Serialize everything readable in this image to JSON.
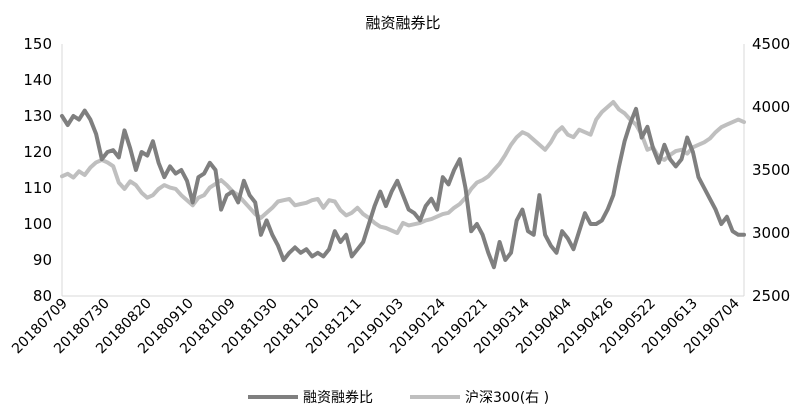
{
  "chart_data": {
    "type": "line",
    "title": "融资融券比",
    "x_tick_labels": [
      "20180709",
      "20180730",
      "20180820",
      "20180910",
      "20181009",
      "20181030",
      "20181120",
      "20181211",
      "20190103",
      "20190124",
      "20190221",
      "20190314",
      "20190404",
      "20190426",
      "20190522",
      "20190613",
      "20190704"
    ],
    "y_left": {
      "ticks": [
        "80",
        "90",
        "100",
        "110",
        "120",
        "130",
        "140",
        "150"
      ],
      "ylim": [
        80,
        150
      ]
    },
    "y_right": {
      "ticks": [
        "2500",
        "3000",
        "3500",
        "4000",
        "4500"
      ],
      "ylim": [
        2500,
        4500
      ]
    },
    "grid": false,
    "legend_position": "bottom",
    "series": [
      {
        "name": "融资融券比",
        "axis": "left",
        "color": "#7f7f7f",
        "values": [
          [
            0,
            130
          ],
          [
            1,
            127.5
          ],
          [
            2,
            130
          ],
          [
            3,
            129
          ],
          [
            4,
            131.5
          ],
          [
            5,
            129
          ],
          [
            6,
            125
          ],
          [
            7,
            118
          ],
          [
            8,
            120
          ],
          [
            9,
            120.5
          ],
          [
            10,
            118.5
          ],
          [
            11,
            126
          ],
          [
            12,
            121
          ],
          [
            13,
            115
          ],
          [
            14,
            120
          ],
          [
            15,
            119
          ],
          [
            16,
            123
          ],
          [
            17,
            117
          ],
          [
            18,
            113
          ],
          [
            19,
            116
          ],
          [
            20,
            114
          ],
          [
            21,
            115
          ],
          [
            22,
            112
          ],
          [
            23,
            106
          ],
          [
            24,
            113
          ],
          [
            25,
            114
          ],
          [
            26,
            117
          ],
          [
            27,
            115
          ],
          [
            28,
            104
          ],
          [
            29,
            108
          ],
          [
            30,
            109
          ],
          [
            31,
            106
          ],
          [
            32,
            112
          ],
          [
            33,
            108
          ],
          [
            34,
            106
          ],
          [
            35,
            97
          ],
          [
            36,
            101
          ],
          [
            37,
            97
          ],
          [
            38,
            94
          ],
          [
            39,
            90
          ],
          [
            40,
            92
          ],
          [
            41,
            93.5
          ],
          [
            42,
            92
          ],
          [
            43,
            93
          ],
          [
            44,
            91
          ],
          [
            45,
            92
          ],
          [
            46,
            91
          ],
          [
            47,
            93
          ],
          [
            48,
            98
          ],
          [
            49,
            95
          ],
          [
            50,
            97
          ],
          [
            51,
            91
          ],
          [
            52,
            93
          ],
          [
            53,
            95
          ],
          [
            54,
            100
          ],
          [
            55,
            105
          ],
          [
            56,
            109
          ],
          [
            57,
            105
          ],
          [
            58,
            109
          ],
          [
            59,
            112
          ],
          [
            60,
            108
          ],
          [
            61,
            104
          ],
          [
            62,
            103
          ],
          [
            63,
            101
          ],
          [
            64,
            105
          ],
          [
            65,
            107
          ],
          [
            66,
            104
          ],
          [
            67,
            113
          ],
          [
            68,
            111
          ],
          [
            69,
            115
          ],
          [
            70,
            118
          ],
          [
            71,
            110
          ],
          [
            72,
            98
          ],
          [
            73,
            100
          ],
          [
            74,
            97
          ],
          [
            75,
            92
          ],
          [
            76,
            88
          ],
          [
            77,
            95
          ],
          [
            78,
            90
          ],
          [
            79,
            92
          ],
          [
            80,
            101
          ],
          [
            81,
            104
          ],
          [
            82,
            98
          ],
          [
            83,
            97
          ],
          [
            84,
            108
          ],
          [
            85,
            97
          ],
          [
            86,
            94
          ],
          [
            87,
            92
          ],
          [
            88,
            98
          ],
          [
            89,
            96
          ],
          [
            90,
            93
          ],
          [
            91,
            98
          ],
          [
            92,
            103
          ],
          [
            93,
            100
          ],
          [
            94,
            100
          ],
          [
            95,
            101
          ],
          [
            96,
            104
          ],
          [
            97,
            108
          ],
          [
            98,
            116
          ],
          [
            99,
            123
          ],
          [
            100,
            128
          ],
          [
            101,
            132
          ],
          [
            102,
            124
          ],
          [
            103,
            127
          ],
          [
            104,
            121
          ],
          [
            105,
            117
          ],
          [
            106,
            122
          ],
          [
            107,
            118
          ],
          [
            108,
            116
          ],
          [
            109,
            118
          ],
          [
            110,
            124
          ],
          [
            111,
            120
          ],
          [
            112,
            113
          ],
          [
            113,
            110
          ],
          [
            114,
            107
          ],
          [
            115,
            104
          ],
          [
            116,
            100
          ],
          [
            117,
            102
          ],
          [
            118,
            98
          ],
          [
            119,
            97
          ],
          [
            120,
            97
          ]
        ]
      },
      {
        "name": "沪深300(右 )",
        "axis": "right",
        "color": "#bfbfbf",
        "values": [
          [
            0,
            3450
          ],
          [
            1,
            3470
          ],
          [
            2,
            3440
          ],
          [
            3,
            3490
          ],
          [
            4,
            3460
          ],
          [
            5,
            3520
          ],
          [
            6,
            3560
          ],
          [
            7,
            3580
          ],
          [
            8,
            3560
          ],
          [
            9,
            3530
          ],
          [
            10,
            3400
          ],
          [
            11,
            3350
          ],
          [
            12,
            3410
          ],
          [
            13,
            3380
          ],
          [
            14,
            3320
          ],
          [
            15,
            3280
          ],
          [
            16,
            3300
          ],
          [
            17,
            3350
          ],
          [
            18,
            3380
          ],
          [
            19,
            3360
          ],
          [
            20,
            3350
          ],
          [
            21,
            3300
          ],
          [
            22,
            3260
          ],
          [
            23,
            3220
          ],
          [
            24,
            3280
          ],
          [
            25,
            3300
          ],
          [
            26,
            3360
          ],
          [
            27,
            3390
          ],
          [
            28,
            3420
          ],
          [
            29,
            3380
          ],
          [
            30,
            3330
          ],
          [
            31,
            3300
          ],
          [
            32,
            3250
          ],
          [
            33,
            3200
          ],
          [
            34,
            3150
          ],
          [
            35,
            3120
          ],
          [
            36,
            3160
          ],
          [
            37,
            3200
          ],
          [
            38,
            3250
          ],
          [
            39,
            3260
          ],
          [
            40,
            3270
          ],
          [
            41,
            3220
          ],
          [
            42,
            3230
          ],
          [
            43,
            3240
          ],
          [
            44,
            3260
          ],
          [
            45,
            3270
          ],
          [
            46,
            3200
          ],
          [
            47,
            3260
          ],
          [
            48,
            3250
          ],
          [
            49,
            3180
          ],
          [
            50,
            3140
          ],
          [
            51,
            3160
          ],
          [
            52,
            3200
          ],
          [
            53,
            3150
          ],
          [
            54,
            3120
          ],
          [
            55,
            3080
          ],
          [
            56,
            3050
          ],
          [
            57,
            3040
          ],
          [
            58,
            3020
          ],
          [
            59,
            3000
          ],
          [
            60,
            3080
          ],
          [
            61,
            3060
          ],
          [
            62,
            3070
          ],
          [
            63,
            3080
          ],
          [
            64,
            3100
          ],
          [
            65,
            3110
          ],
          [
            66,
            3130
          ],
          [
            67,
            3150
          ],
          [
            68,
            3160
          ],
          [
            69,
            3200
          ],
          [
            70,
            3230
          ],
          [
            71,
            3280
          ],
          [
            72,
            3350
          ],
          [
            73,
            3400
          ],
          [
            74,
            3420
          ],
          [
            75,
            3450
          ],
          [
            76,
            3500
          ],
          [
            77,
            3550
          ],
          [
            78,
            3620
          ],
          [
            79,
            3700
          ],
          [
            80,
            3760
          ],
          [
            81,
            3800
          ],
          [
            82,
            3780
          ],
          [
            83,
            3740
          ],
          [
            84,
            3700
          ],
          [
            85,
            3660
          ],
          [
            86,
            3720
          ],
          [
            87,
            3800
          ],
          [
            88,
            3840
          ],
          [
            89,
            3780
          ],
          [
            90,
            3760
          ],
          [
            91,
            3820
          ],
          [
            92,
            3800
          ],
          [
            93,
            3780
          ],
          [
            94,
            3900
          ],
          [
            95,
            3960
          ],
          [
            96,
            4000
          ],
          [
            97,
            4040
          ],
          [
            98,
            3980
          ],
          [
            99,
            3950
          ],
          [
            100,
            3900
          ],
          [
            101,
            3860
          ],
          [
            102,
            3780
          ],
          [
            103,
            3660
          ],
          [
            104,
            3680
          ],
          [
            105,
            3600
          ],
          [
            106,
            3580
          ],
          [
            107,
            3620
          ],
          [
            108,
            3650
          ],
          [
            109,
            3660
          ],
          [
            110,
            3630
          ],
          [
            111,
            3680
          ],
          [
            112,
            3700
          ],
          [
            113,
            3720
          ],
          [
            114,
            3750
          ],
          [
            115,
            3800
          ],
          [
            116,
            3840
          ],
          [
            117,
            3860
          ],
          [
            118,
            3880
          ],
          [
            119,
            3900
          ],
          [
            120,
            3880
          ]
        ]
      }
    ]
  }
}
